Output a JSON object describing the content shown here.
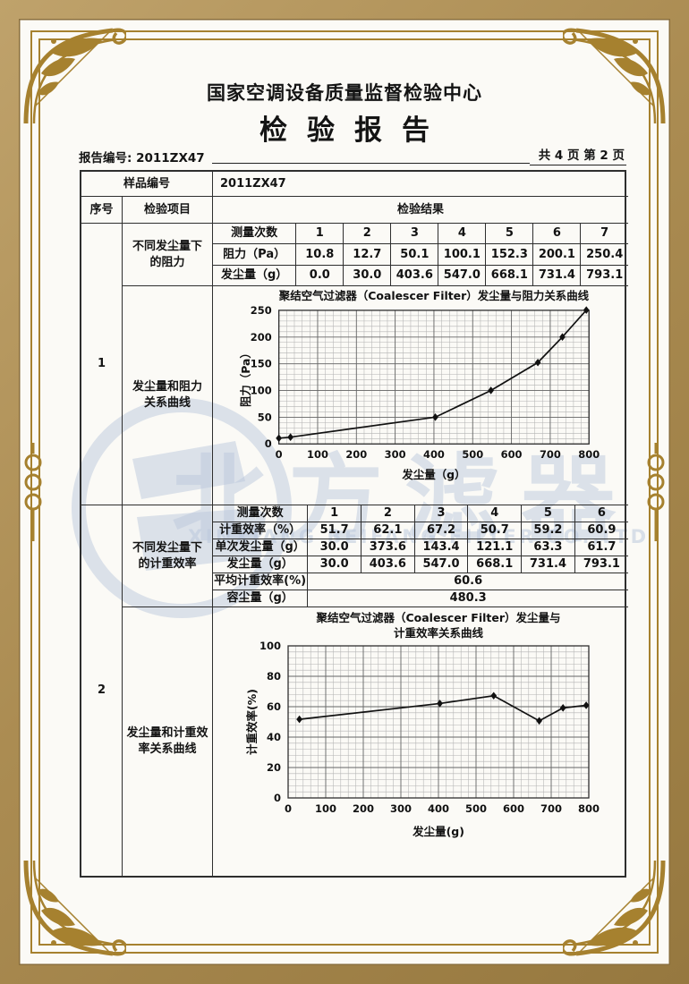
{
  "header": {
    "center_name": "国家空调设备质量监督检验中心",
    "report_title": "检验报告",
    "report_no": "报告编号: 2011ZX47",
    "page_info": "共 4 页  第 2 页"
  },
  "table": {
    "sample_no_label": "样品编号",
    "sample_no_value": "2011ZX47",
    "seq_header": "序号",
    "item_header": "检验项目",
    "result_header": "检验结果",
    "group1": {
      "seq": "1",
      "item_top": "不同发尘量下\n的阻力",
      "item_bottom": "发尘量和阻力\n关系曲线",
      "row_labels": [
        "测量次数",
        "阻力（Pa）",
        "发尘量（g）"
      ],
      "times": [
        "1",
        "2",
        "3",
        "4",
        "5",
        "6",
        "7"
      ],
      "resistance": [
        "10.8",
        "12.7",
        "50.1",
        "100.1",
        "152.3",
        "200.1",
        "250.4"
      ],
      "dust": [
        "0.0",
        "30.0",
        "403.6",
        "547.0",
        "668.1",
        "731.4",
        "793.1"
      ]
    },
    "group2": {
      "seq": "2",
      "item_top": "不同发尘量下\n的计重效率",
      "item_bottom": "发尘量和计重效\n率关系曲线",
      "row_labels": [
        "测量次数",
        "计重效率（%）",
        "单次发尘量（g）",
        "发尘量（g）"
      ],
      "times": [
        "1",
        "2",
        "3",
        "4",
        "5",
        "6"
      ],
      "efficiency": [
        "51.7",
        "62.1",
        "67.2",
        "50.7",
        "59.2",
        "60.9"
      ],
      "single_dust": [
        "30.0",
        "373.6",
        "143.4",
        "121.1",
        "63.3",
        "61.7"
      ],
      "dust": [
        "30.0",
        "403.6",
        "547.0",
        "668.1",
        "731.4",
        "793.1"
      ],
      "avg_label": "平均计重效率(%)",
      "avg_value": "60.6",
      "capacity_label": "容尘量（g）",
      "capacity_value": "480.3"
    }
  },
  "chart_data": [
    {
      "type": "line",
      "title": "聚结空气过滤器（Coalescer Filter）发尘量与阻力关系曲线",
      "subtitle": "",
      "xlabel": "发尘量（g）",
      "ylabel": "阻力（Pa）",
      "xlim": [
        0,
        800
      ],
      "ylim": [
        0,
        250
      ],
      "xticks": [
        0,
        100,
        200,
        300,
        400,
        500,
        600,
        700,
        800
      ],
      "yticks": [
        0,
        50,
        100,
        150,
        200,
        250
      ],
      "x_minor": 20,
      "y_minor": 10,
      "grid": true,
      "legend": false,
      "marker": "diamond",
      "x": [
        0.0,
        30.0,
        403.6,
        547.0,
        668.1,
        731.4,
        793.1
      ],
      "y": [
        10.8,
        12.7,
        50.1,
        100.1,
        152.3,
        200.1,
        250.4
      ]
    },
    {
      "type": "line",
      "title": "聚结空气过滤器（Coalescer Filter）发尘量与",
      "subtitle": "计重效率关系曲线",
      "xlabel": "发尘量(g)",
      "ylabel": "计重效率(%)",
      "xlim": [
        0,
        800
      ],
      "ylim": [
        0,
        100
      ],
      "xticks": [
        0,
        100,
        200,
        300,
        400,
        500,
        600,
        700,
        800
      ],
      "yticks": [
        0,
        20,
        40,
        60,
        80,
        100
      ],
      "x_minor": 20,
      "y_minor": 4,
      "grid": true,
      "legend": false,
      "marker": "diamond",
      "x": [
        30.0,
        403.6,
        547.0,
        668.1,
        731.4,
        793.1
      ],
      "y": [
        51.7,
        62.1,
        67.2,
        50.7,
        59.2,
        60.9
      ]
    }
  ],
  "watermark": {
    "logo_icon": "beifang-b-logo",
    "cn_text": "北方滤器",
    "en_text": "XINXIANG BEIFANG FILTER CO.,LTD"
  },
  "colors": {
    "frame_gold": "#a6812f",
    "band_tan": "#ab8c52",
    "watermark_blue": "#bcc9dd",
    "table_line": "#2e2e2e",
    "ink": "#141414"
  }
}
